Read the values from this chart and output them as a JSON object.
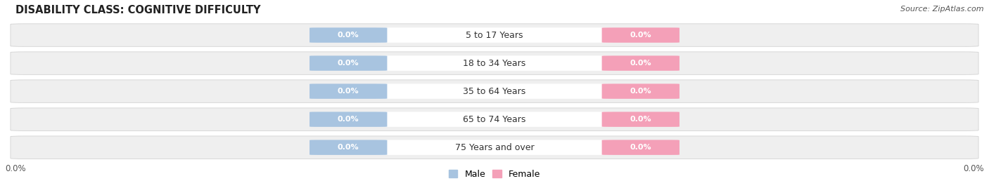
{
  "title": "DISABILITY CLASS: COGNITIVE DIFFICULTY",
  "source": "Source: ZipAtlas.com",
  "categories": [
    "5 to 17 Years",
    "18 to 34 Years",
    "35 to 64 Years",
    "65 to 74 Years",
    "75 Years and over"
  ],
  "male_values": [
    0.0,
    0.0,
    0.0,
    0.0,
    0.0
  ],
  "female_values": [
    0.0,
    0.0,
    0.0,
    0.0,
    0.0
  ],
  "male_color": "#a8c4e0",
  "female_color": "#f4a0b8",
  "row_bg_color": "#efefef",
  "row_bg_color2": "#e8e8e8",
  "title_fontsize": 10.5,
  "cat_fontsize": 9,
  "pill_fontsize": 8,
  "tick_fontsize": 8.5,
  "male_legend": "Male",
  "female_legend": "Female",
  "bg_color": "#ffffff",
  "source_fontsize": 8,
  "left_tick_label": "0.0%",
  "right_tick_label": "0.0%",
  "center_tick_label": ""
}
